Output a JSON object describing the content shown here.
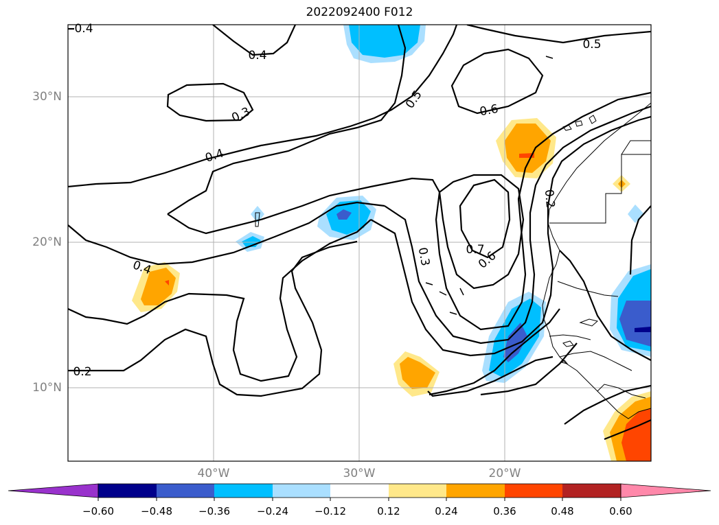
{
  "title": "2022092400 F012",
  "axes": {
    "lat_ticks": [
      "30°N",
      "20°N",
      "10°N"
    ],
    "lon_ticks": [
      "40°W",
      "30°W",
      "20°W"
    ]
  },
  "contour_labels": [
    {
      "text": "0.4",
      "name": "contour-label-0-4-topleft"
    },
    {
      "text": "0.4",
      "name": "contour-label-0-4-top"
    },
    {
      "text": "0.5",
      "name": "contour-label-0-5-topright"
    },
    {
      "text": "0.3",
      "name": "contour-label-0-3-north"
    },
    {
      "text": "0.5",
      "name": "contour-label-0-5-center"
    },
    {
      "text": "0.6",
      "name": "contour-label-0-6-north"
    },
    {
      "text": "0.4",
      "name": "contour-label-0-4-mid"
    },
    {
      "text": "0.2",
      "name": "contour-label-0-2-east"
    },
    {
      "text": "0.7",
      "name": "contour-label-0-7"
    },
    {
      "text": "0.6",
      "name": "contour-label-0-6-center"
    },
    {
      "text": "0.3",
      "name": "contour-label-0-3-center"
    },
    {
      "text": "0.4",
      "name": "contour-label-0-4-west"
    },
    {
      "text": "0.2",
      "name": "contour-label-0-2-west"
    }
  ],
  "colorbar": {
    "ticks": [
      "−0.60",
      "−0.48",
      "−0.36",
      "−0.24",
      "−0.12",
      "0.12",
      "0.24",
      "0.36",
      "0.48",
      "0.60"
    ],
    "colors": [
      "#9932cc",
      "#00008b",
      "#3a5ccc",
      "#00bfff",
      "#aadfff",
      "#ffffff",
      "#ffe88a",
      "#ffa500",
      "#ff4500",
      "#b22222",
      "#ff88aa"
    ]
  }
}
